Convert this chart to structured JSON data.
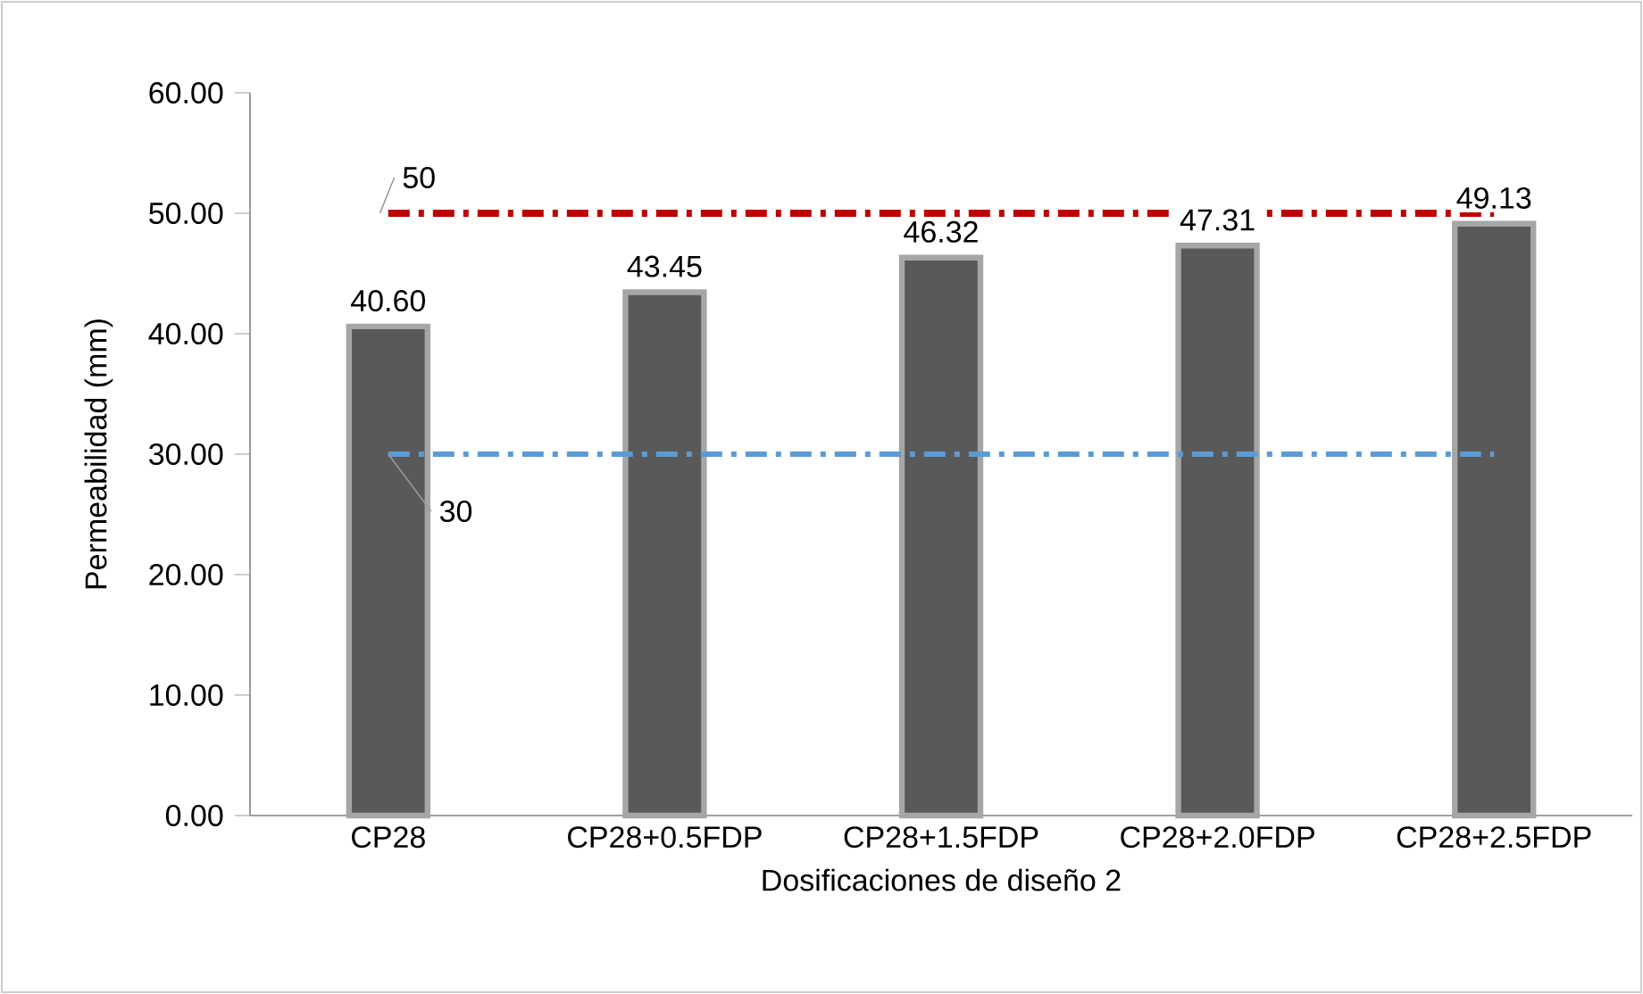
{
  "chart_data": {
    "type": "bar",
    "xlabel": "Dosificaciones de diseño 2",
    "ylabel": "Permeabilidad (mm)",
    "categories": [
      "CP28",
      "CP28+0.5FDP",
      "CP28+1.5FDP",
      "CP28+2.0FDP",
      "CP28+2.5FDP"
    ],
    "values": [
      40.6,
      43.45,
      46.32,
      47.31,
      49.13
    ],
    "value_labels": [
      "40.60",
      "43.45",
      "46.32",
      "47.31",
      "49.13"
    ],
    "color": "#595959",
    "ylim": [
      0,
      60
    ],
    "yticks": [
      {
        "value": 0,
        "label": "0.00"
      },
      {
        "value": 10,
        "label": "10.00"
      },
      {
        "value": 20,
        "label": "20.00"
      },
      {
        "value": 30,
        "label": "30.00"
      },
      {
        "value": 40,
        "label": "40.00"
      },
      {
        "value": 50,
        "label": "50.00"
      },
      {
        "value": 60,
        "label": "60.00"
      }
    ],
    "ref_lines": [
      {
        "axis": "y",
        "value": 50,
        "label": "50",
        "color": "#c00000",
        "line_style": "dashdot"
      },
      {
        "axis": "y",
        "value": 30,
        "label": "30",
        "color": "#5b9bd5",
        "line_style": "dashdot"
      }
    ],
    "grid": false
  }
}
